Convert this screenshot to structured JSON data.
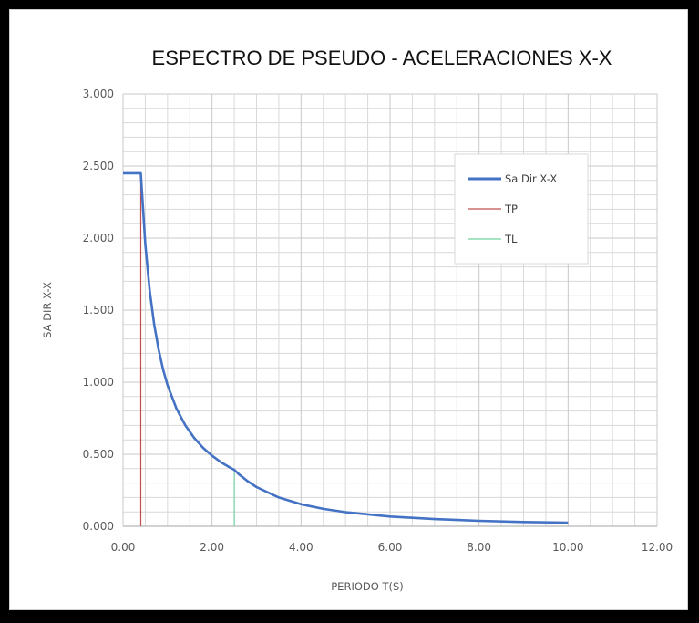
{
  "chart_data": {
    "type": "line",
    "title": "ESPECTRO DE PSEUDO - ACELERACIONES X-X",
    "xlabel": "PERIODO T(S)",
    "ylabel": "SA DIR X-X",
    "xlim": [
      0,
      12
    ],
    "ylim": [
      0,
      3
    ],
    "x_ticks": [
      "0.00",
      "2.00",
      "4.00",
      "6.00",
      "8.00",
      "10.00",
      "12.00"
    ],
    "y_ticks": [
      "0.000",
      "0.500",
      "1.000",
      "1.500",
      "2.000",
      "2.500",
      "3.000"
    ],
    "grid": true,
    "legend_position": "top-right",
    "series": [
      {
        "name": "Sa Dir X-X",
        "color": "#4472C4",
        "x": [
          0,
          0.1,
          0.2,
          0.3,
          0.4,
          0.5,
          0.6,
          0.7,
          0.8,
          0.9,
          1.0,
          1.2,
          1.4,
          1.6,
          1.8,
          2.0,
          2.2,
          2.4,
          2.5,
          2.6,
          2.8,
          3.0,
          3.5,
          4.0,
          4.5,
          5.0,
          6.0,
          7.0,
          8.0,
          9.0,
          10.0
        ],
        "y": [
          2.45,
          2.45,
          2.45,
          2.45,
          2.45,
          1.96,
          1.633,
          1.4,
          1.225,
          1.089,
          0.98,
          0.817,
          0.7,
          0.613,
          0.544,
          0.49,
          0.445,
          0.408,
          0.392,
          0.362,
          0.313,
          0.272,
          0.2,
          0.153,
          0.121,
          0.098,
          0.068,
          0.05,
          0.038,
          0.03,
          0.025
        ]
      },
      {
        "name": "TP",
        "color": "#C0504D",
        "x": [
          0.4,
          0.4
        ],
        "y": [
          0,
          2.45
        ]
      },
      {
        "name": "TL",
        "color": "#70D0A0",
        "x": [
          2.5,
          2.5
        ],
        "y": [
          0,
          0.392
        ]
      }
    ]
  }
}
